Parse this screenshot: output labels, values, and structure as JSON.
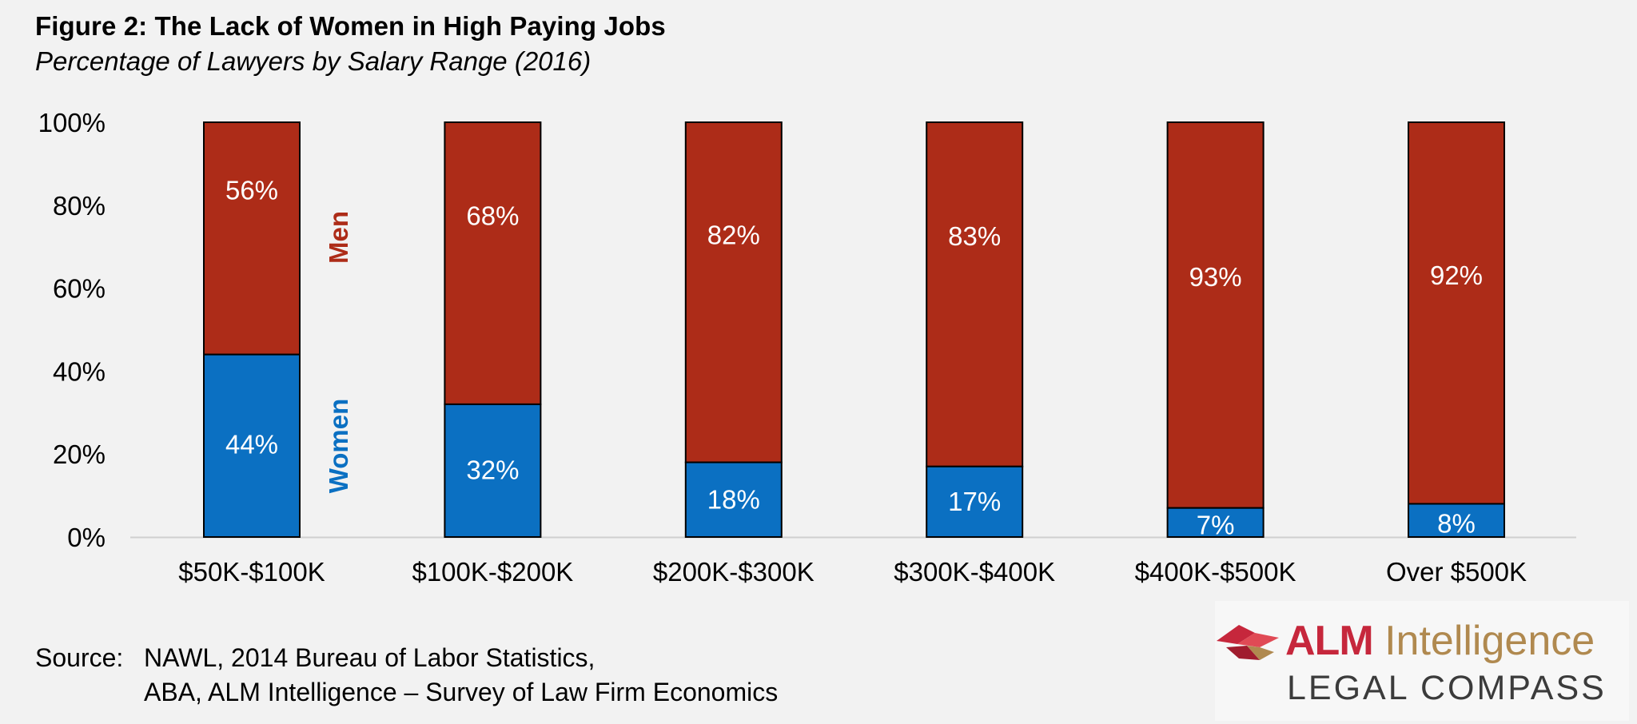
{
  "title": "Figure 2: The Lack of Women in High Paying Jobs",
  "subtitle": "Percentage of Lawyers by Salary Range (2016)",
  "chart_data": {
    "type": "bar",
    "stacked": true,
    "categories": [
      "$50K-$100K",
      "$100K-$200K",
      "$200K-$300K",
      "$300K-$400K",
      "$400K-$500K",
      "Over $500K"
    ],
    "series": [
      {
        "name": "Women",
        "values": [
          44,
          32,
          18,
          17,
          7,
          8
        ],
        "labels": [
          "44%",
          "32%",
          "18%",
          "17%",
          "7%",
          "8%"
        ],
        "color": "#0b70c2"
      },
      {
        "name": "Men",
        "values": [
          56,
          68,
          82,
          83,
          93,
          92
        ],
        "labels": [
          "56%",
          "68%",
          "82%",
          "83%",
          "93%",
          "92%"
        ],
        "color": "#ad2c18"
      }
    ],
    "ylim": [
      0,
      100
    ],
    "yticks": [
      "0%",
      "20%",
      "40%",
      "60%",
      "80%",
      "100%"
    ],
    "series_annotations": [
      "Women",
      "Men"
    ],
    "grid": false
  },
  "source": {
    "label": "Source:",
    "line1": "NAWL, 2014 Bureau of Labor Statistics,",
    "line2": "ABA, ALM Intelligence – Survey of Law Firm Economics"
  },
  "logo": {
    "brand": "ALM",
    "product": "Intelligence",
    "tagline": "LEGAL COMPASS",
    "icon": "alm-bird-icon"
  }
}
